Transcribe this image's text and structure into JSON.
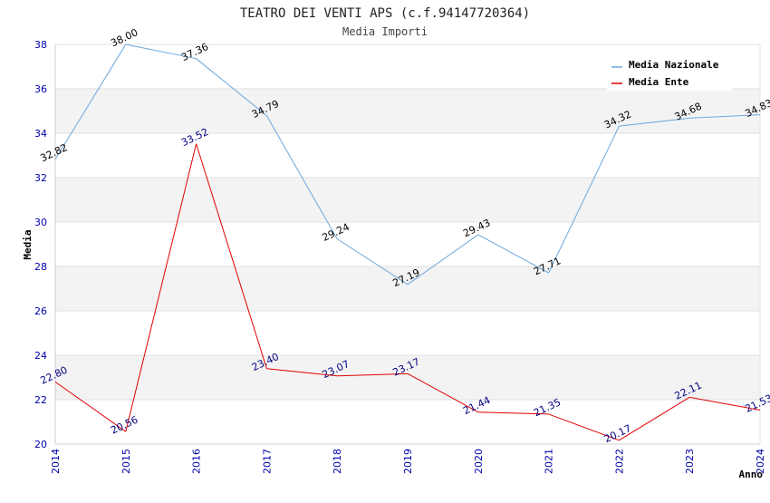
{
  "chart_data": {
    "type": "line",
    "title": "TEATRO DEI VENTI APS (c.f.94147720364)",
    "subtitle": "Media Importi",
    "xlabel": "Anno",
    "ylabel": "Media",
    "ylim": [
      20,
      38
    ],
    "yticks": [
      20,
      22,
      24,
      26,
      28,
      30,
      32,
      34,
      36,
      38
    ],
    "grid": "horizontal bands",
    "legend_position": "top-right",
    "categories": [
      "2014",
      "2015",
      "2016",
      "2017",
      "2018",
      "2019",
      "2020",
      "2021",
      "2022",
      "2023",
      "2024"
    ],
    "series": [
      {
        "name": "Media Nazionale",
        "color": "#6aa8e0",
        "label_color": "#000000",
        "values": [
          32.82,
          38.0,
          37.36,
          34.79,
          29.24,
          27.19,
          29.43,
          27.71,
          34.32,
          34.68,
          34.83
        ],
        "labels": [
          "32.82",
          "38.00",
          "37.36",
          "34.79",
          "29.24",
          "27.19",
          "29.43",
          "27.71",
          "34.32",
          "34.68",
          "34.83"
        ]
      },
      {
        "name": "Media Ente",
        "color": "#e00000",
        "label_color": "#000080",
        "values": [
          22.8,
          20.56,
          33.52,
          23.4,
          23.07,
          23.17,
          21.44,
          21.35,
          20.17,
          22.11,
          21.53
        ],
        "labels": [
          "22.80",
          "20.56",
          "33.52",
          "23.40",
          "23.07",
          "23.17",
          "21.44",
          "21.35",
          "20.17",
          "22.11",
          "21.53"
        ]
      }
    ]
  }
}
